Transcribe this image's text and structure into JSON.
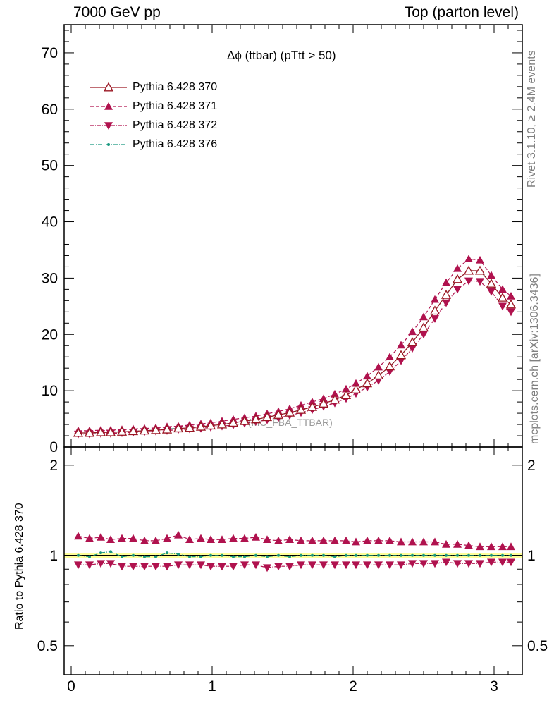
{
  "header": {
    "left": "7000 GeV pp",
    "right": "Top (parton level)"
  },
  "side_labels": {
    "rivet": "Rivet 3.1.10, ≥ 2.4M events",
    "mcplots": "mcplots.cern.ch [arXiv:1306.3436]"
  },
  "watermark": "(MC_FBA_TTBAR)",
  "colors": {
    "s370": "#9a1622",
    "s371": "#b0124e",
    "s372": "#b0124e",
    "s376": "#1a9980",
    "band": "#ffff99"
  },
  "chart_data": [
    {
      "type": "line",
      "title": "Δϕ (ttbar) (pTtt > 50)",
      "xlabel": "",
      "ylabel": "",
      "xlim": [
        -0.05,
        3.2
      ],
      "ylim": [
        0,
        75
      ],
      "yticks": [
        0,
        10,
        20,
        30,
        40,
        50,
        60,
        70
      ],
      "legend_position": "top-left",
      "x": [
        0.05,
        0.13,
        0.21,
        0.28,
        0.36,
        0.44,
        0.52,
        0.6,
        0.68,
        0.76,
        0.84,
        0.92,
        0.99,
        1.07,
        1.15,
        1.23,
        1.31,
        1.39,
        1.47,
        1.55,
        1.63,
        1.71,
        1.79,
        1.87,
        1.95,
        2.02,
        2.1,
        2.18,
        2.26,
        2.34,
        2.42,
        2.5,
        2.58,
        2.66,
        2.74,
        2.82,
        2.9,
        2.98,
        3.06,
        3.12
      ],
      "series": [
        {
          "name": "Pythia 6.428 370",
          "key": "s370",
          "marker": "open-triangle-up",
          "dash": "",
          "values": [
            2.5,
            2.5,
            2.6,
            2.6,
            2.7,
            2.8,
            2.9,
            3.0,
            3.1,
            3.3,
            3.4,
            3.6,
            3.8,
            4.0,
            4.3,
            4.6,
            4.9,
            5.3,
            5.7,
            6.1,
            6.6,
            7.1,
            7.7,
            8.4,
            9.2,
            10.2,
            11.3,
            12.7,
            14.3,
            16.3,
            18.6,
            21.2,
            24.2,
            27.0,
            29.8,
            31.3,
            31.3,
            29.0,
            26.5,
            25.3
          ]
        },
        {
          "name": "Pythia 6.428 371",
          "key": "s371",
          "marker": "filled-triangle-up",
          "dash": "5,3",
          "values": [
            2.9,
            2.9,
            3.0,
            3.0,
            3.1,
            3.2,
            3.3,
            3.4,
            3.6,
            3.7,
            3.9,
            4.1,
            4.3,
            4.6,
            4.9,
            5.2,
            5.5,
            5.9,
            6.3,
            6.8,
            7.4,
            8.0,
            8.6,
            9.4,
            10.3,
            11.3,
            12.6,
            14.2,
            16.0,
            18.1,
            20.5,
            23.1,
            26.2,
            29.2,
            31.7,
            33.4,
            33.2,
            30.5,
            28.0,
            26.8
          ]
        },
        {
          "name": "Pythia 6.428 372",
          "key": "s372",
          "marker": "filled-triangle-down",
          "dash": "5,2,1,2",
          "values": [
            2.3,
            2.3,
            2.4,
            2.4,
            2.5,
            2.6,
            2.7,
            2.8,
            2.9,
            3.1,
            3.2,
            3.3,
            3.5,
            3.7,
            3.9,
            4.2,
            4.5,
            4.8,
            5.2,
            5.6,
            6.1,
            6.6,
            7.2,
            7.8,
            8.6,
            9.5,
            10.6,
            11.8,
            13.4,
            15.3,
            17.5,
            20.0,
            22.8,
            25.6,
            28.0,
            29.5,
            29.4,
            27.6,
            25.0,
            24.0
          ]
        },
        {
          "name": "Pythia 6.428 376",
          "key": "s376",
          "marker": "dot",
          "dash": "6,2,1,2",
          "values": [
            2.5,
            2.5,
            2.6,
            2.7,
            2.7,
            2.8,
            2.9,
            3.0,
            3.2,
            3.3,
            3.4,
            3.6,
            3.8,
            4.0,
            4.3,
            4.6,
            4.9,
            5.3,
            5.7,
            6.1,
            6.6,
            7.1,
            7.7,
            8.4,
            9.2,
            10.2,
            11.3,
            12.7,
            14.3,
            16.3,
            18.6,
            21.2,
            24.2,
            27.0,
            29.8,
            31.3,
            31.3,
            29.0,
            26.5,
            25.3
          ]
        }
      ]
    },
    {
      "type": "line",
      "title": "",
      "xlabel": "",
      "ylabel": "Ratio to Pythia 6.428 370",
      "xlim": [
        -0.05,
        3.2
      ],
      "ylim": [
        0.4,
        2.3
      ],
      "y_scale": "log",
      "yticks": [
        0.5,
        1,
        2
      ],
      "xticks": [
        0,
        1,
        2,
        3
      ],
      "reference_line": 1,
      "x": [
        0.05,
        0.13,
        0.21,
        0.28,
        0.36,
        0.44,
        0.52,
        0.6,
        0.68,
        0.76,
        0.84,
        0.92,
        0.99,
        1.07,
        1.15,
        1.23,
        1.31,
        1.39,
        1.47,
        1.55,
        1.63,
        1.71,
        1.79,
        1.87,
        1.95,
        2.02,
        2.1,
        2.18,
        2.26,
        2.34,
        2.42,
        2.5,
        2.58,
        2.66,
        2.74,
        2.82,
        2.9,
        2.98,
        3.06,
        3.12
      ],
      "series": [
        {
          "name": "Pythia 6.428 371",
          "key": "s371",
          "marker": "filled-triangle-up",
          "dash": "5,3",
          "values": [
            1.16,
            1.14,
            1.15,
            1.13,
            1.14,
            1.14,
            1.12,
            1.12,
            1.14,
            1.17,
            1.13,
            1.14,
            1.13,
            1.13,
            1.14,
            1.14,
            1.15,
            1.13,
            1.12,
            1.13,
            1.12,
            1.12,
            1.12,
            1.12,
            1.12,
            1.11,
            1.12,
            1.12,
            1.12,
            1.11,
            1.11,
            1.11,
            1.11,
            1.09,
            1.09,
            1.08,
            1.07,
            1.07,
            1.07,
            1.07
          ]
        },
        {
          "name": "Pythia 6.428 372",
          "key": "s372",
          "marker": "filled-triangle-down",
          "dash": "5,2,1,2",
          "values": [
            0.93,
            0.93,
            0.94,
            0.94,
            0.92,
            0.92,
            0.92,
            0.92,
            0.92,
            0.93,
            0.93,
            0.93,
            0.92,
            0.92,
            0.92,
            0.93,
            0.93,
            0.91,
            0.92,
            0.92,
            0.93,
            0.93,
            0.93,
            0.93,
            0.93,
            0.93,
            0.93,
            0.93,
            0.93,
            0.93,
            0.94,
            0.94,
            0.94,
            0.95,
            0.94,
            0.94,
            0.94,
            0.95,
            0.95,
            0.95
          ]
        },
        {
          "name": "Pythia 6.428 376",
          "key": "s376",
          "marker": "dot",
          "dash": "6,2,1,2",
          "values": [
            1.0,
            0.99,
            1.02,
            1.03,
            0.99,
            1.0,
            0.99,
            0.99,
            1.02,
            1.01,
            0.99,
            0.99,
            1.0,
            1.0,
            0.99,
            0.99,
            1.0,
            0.99,
            1.0,
            0.99,
            1.0,
            1.0,
            1.0,
            0.99,
            1.0,
            1.0,
            1.0,
            1.0,
            1.0,
            1.0,
            1.0,
            1.0,
            1.0,
            1.0,
            1.0,
            1.0,
            1.0,
            1.0,
            1.0,
            1.0
          ]
        }
      ]
    }
  ]
}
